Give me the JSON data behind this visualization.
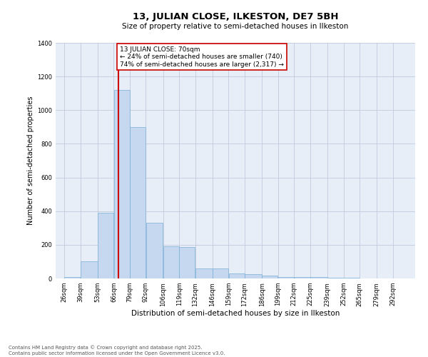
{
  "title1": "13, JULIAN CLOSE, ILKESTON, DE7 5BH",
  "title2": "Size of property relative to semi-detached houses in Ilkeston",
  "xlabel": "Distribution of semi-detached houses by size in Ilkeston",
  "ylabel": "Number of semi-detached properties",
  "footnote1": "Contains HM Land Registry data © Crown copyright and database right 2025.",
  "footnote2": "Contains public sector information licensed under the Open Government Licence v3.0.",
  "annotation_line1": "13 JULIAN CLOSE: 70sqm",
  "annotation_line2": "← 24% of semi-detached houses are smaller (740)",
  "annotation_line3": "74% of semi-detached houses are larger (2,317) →",
  "property_size": 70,
  "bin_edges": [
    26,
    39,
    53,
    66,
    79,
    92,
    106,
    119,
    132,
    146,
    159,
    172,
    186,
    199,
    212,
    225,
    239,
    252,
    265,
    279,
    292
  ],
  "bar_heights": [
    10,
    100,
    390,
    1120,
    900,
    330,
    190,
    185,
    60,
    60,
    30,
    25,
    15,
    10,
    10,
    8,
    5,
    3,
    2,
    1
  ],
  "bar_color": "#c5d8f0",
  "bar_edge_color": "#7aaed6",
  "red_line_color": "#cc0000",
  "background_color": "#e8eef8",
  "ylim": [
    0,
    1400
  ],
  "yticks": [
    0,
    200,
    400,
    600,
    800,
    1000,
    1200,
    1400
  ],
  "title1_fontsize": 9.5,
  "title2_fontsize": 7.5,
  "ylabel_fontsize": 7,
  "xlabel_fontsize": 7.5,
  "tick_fontsize": 6,
  "footnote_fontsize": 5,
  "annot_fontsize": 6.5
}
